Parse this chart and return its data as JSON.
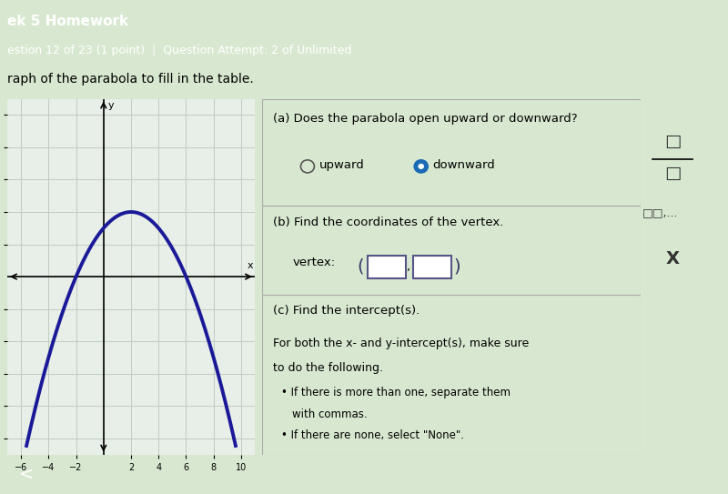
{
  "header_text": "ek 5 Homework",
  "subheader_text": "estion 12 of 23 (1 point)  |  Question Attempt: 2 of Unlimited",
  "instruction_text": "raph of the parabola to fill in the table.",
  "header_bg_color": "#4a7a5a",
  "subheader_bg_color": "#5a8a6a",
  "body_bg_color": "#d8e8d0",
  "panel_bg_color": "#e8f0e8",
  "graph_bg_color": "#e8eee8",
  "graph_grid_color": "#c0ccc0",
  "parabola_color": "#1a1a99",
  "parabola_linewidth": 2.8,
  "vertex_x": 2,
  "vertex_y": 4,
  "x_range": [
    -7,
    11
  ],
  "y_range": [
    -11,
    11
  ],
  "graph_xlim": [
    -7,
    11
  ],
  "graph_ylim": [
    -11,
    11
  ],
  "xticks": [
    -6,
    -4,
    -2,
    2,
    4,
    6,
    8,
    10
  ],
  "yticks": [
    -10,
    -8,
    -6,
    -4,
    -2,
    2,
    4,
    6,
    8,
    10
  ],
  "question_a_text": "(a) Does the parabola open upward or downward?",
  "question_b_text": "(b) Find the coordinates of the vertex.",
  "question_c_text": "(c) Find the intercept(s).",
  "answer_direction": "downward",
  "radio_selected": "downward",
  "question_c_detail1": "For both the x- and y-intercept(s), make sure",
  "question_c_detail2": "to do the following.",
  "bullet1": "If there is more than one, separate them",
  "bullet1b": "with commas.",
  "bullet2": "If there are none, select \"None\".",
  "vertex_label": "vertex:",
  "right_panel_bg": "#f0f0f0"
}
